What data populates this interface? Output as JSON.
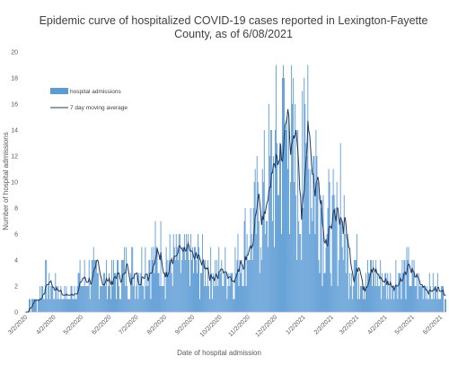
{
  "chart_data": {
    "type": "bar",
    "title_line1": "Epidemic curve of hospitalized COVID-19 cases reported in Lexington-Fayette",
    "title_line2": "County, as of 6/08/2021",
    "xlabel": "Date of hospital admission",
    "ylabel": "Number of hospital admissions",
    "ylim": [
      0,
      20
    ],
    "yticks": [
      "0",
      "2",
      "4",
      "6",
      "8",
      "10",
      "12",
      "14",
      "16",
      "18",
      "20"
    ],
    "xlim": [
      "2020-03-02",
      "2021-06-08"
    ],
    "xticks": [
      {
        "label": "3/2/2020",
        "date": "2020-03-02"
      },
      {
        "label": "4/2/2020",
        "date": "2020-04-02"
      },
      {
        "label": "5/2/2020",
        "date": "2020-05-02"
      },
      {
        "label": "6/2/2020",
        "date": "2020-06-02"
      },
      {
        "label": "7/2/2020",
        "date": "2020-07-02"
      },
      {
        "label": "8/2/2020",
        "date": "2020-08-02"
      },
      {
        "label": "9/2/2020",
        "date": "2020-09-02"
      },
      {
        "label": "10/2/2020",
        "date": "2020-10-02"
      },
      {
        "label": "11/2/2020",
        "date": "2020-11-02"
      },
      {
        "label": "12/2/2020",
        "date": "2020-12-02"
      },
      {
        "label": "1/2/2021",
        "date": "2021-01-02"
      },
      {
        "label": "2/2/2021",
        "date": "2021-02-02"
      },
      {
        "label": "3/2/2021",
        "date": "2021-03-02"
      },
      {
        "label": "4/2/2021",
        "date": "2021-04-02"
      },
      {
        "label": "5/2/2021",
        "date": "2021-05-02"
      },
      {
        "label": "6/2/2021",
        "date": "2021-06-02"
      }
    ],
    "legend_position": "top-left",
    "grid": false,
    "series": [
      {
        "name": "hospital admissions",
        "kind": "bar",
        "color": "#5b9bd5",
        "x": [],
        "values": []
      },
      {
        "name": "7 day moving average",
        "kind": "line",
        "color": "#1f3864",
        "x": [],
        "values": []
      }
    ]
  }
}
